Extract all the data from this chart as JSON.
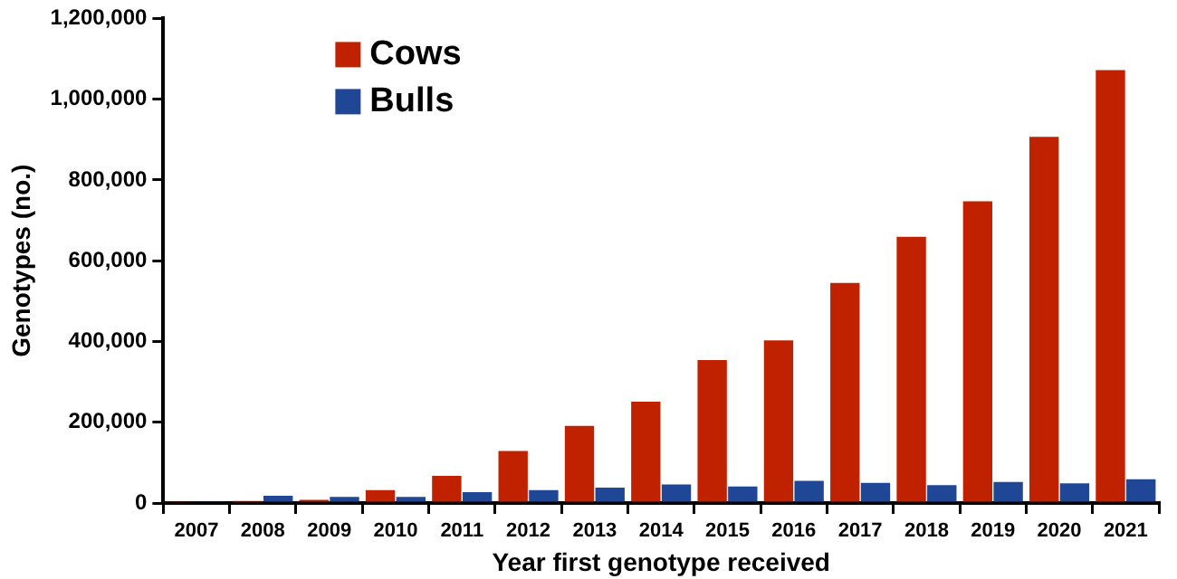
{
  "chart_data": {
    "type": "bar",
    "xlabel": "Year first genotype received",
    "ylabel": "Genotypes (no.)",
    "categories": [
      "2007",
      "2008",
      "2009",
      "2010",
      "2011",
      "2012",
      "2013",
      "2014",
      "2015",
      "2016",
      "2017",
      "2018",
      "2019",
      "2020",
      "2021"
    ],
    "series": [
      {
        "name": "Cows",
        "color": "#c02200",
        "values": [
          4000,
          5000,
          8000,
          32000,
          67000,
          129000,
          191000,
          251000,
          354000,
          403000,
          545000,
          659000,
          747000,
          907000,
          1072000
        ]
      },
      {
        "name": "Bulls",
        "color": "#1f4795",
        "values": [
          4000,
          18000,
          15000,
          15000,
          27000,
          32000,
          38000,
          46000,
          41000,
          55000,
          50000,
          44000,
          52000,
          49000,
          59000
        ]
      }
    ],
    "ylim": [
      0,
      1200000
    ],
    "yticks": [
      {
        "value": 0,
        "label": "0"
      },
      {
        "value": 200000,
        "label": "200,000"
      },
      {
        "value": 400000,
        "label": "400,000"
      },
      {
        "value": 600000,
        "label": "600,000"
      },
      {
        "value": 800000,
        "label": "800,000"
      },
      {
        "value": 1000000,
        "label": "1,000,000"
      },
      {
        "value": 1200000,
        "label": "1,200,000"
      }
    ],
    "grid": false,
    "legend": "top left"
  }
}
